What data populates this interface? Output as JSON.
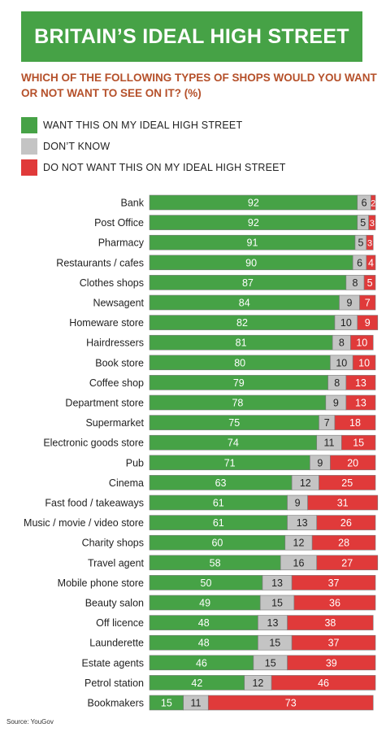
{
  "header": {
    "title": "BRITAIN’S IDEAL HIGH STREET",
    "subtitle": "WHICH OF THE FOLLOWING TYPES OF SHOPS WOULD YOU WANT OR NOT WANT TO SEE ON IT? (%)"
  },
  "colors": {
    "want": "#46a246",
    "dont_know": "#c4c4c4",
    "not_want": "#e03a3a",
    "banner": "#46a246",
    "subtitle": "#b5502a"
  },
  "legend": [
    {
      "label": "WANT THIS ON MY IDEAL HIGH STREET",
      "color": "#46a246"
    },
    {
      "label": "DON’T KNOW",
      "color": "#c4c4c4"
    },
    {
      "label": "DO NOT WANT THIS ON MY IDEAL HIGH STREET",
      "color": "#e03a3a"
    }
  ],
  "chart_data": {
    "type": "bar",
    "orientation": "horizontal",
    "stacked": true,
    "categories": [
      "Bank",
      "Post Office",
      "Pharmacy",
      "Restaurants / cafes",
      "Clothes shops",
      "Newsagent",
      "Homeware store",
      "Hairdressers",
      "Book store",
      "Coffee shop",
      "Department store",
      "Supermarket",
      "Electronic goods store",
      "Pub",
      "Cinema",
      "Fast food / takeaways",
      "Music / movie / video store",
      "Charity shops",
      "Travel agent",
      "Mobile phone store",
      "Beauty salon",
      "Off licence",
      "Launderette",
      "Estate agents",
      "Petrol station",
      "Bookmakers"
    ],
    "series": [
      {
        "name": "WANT THIS ON MY IDEAL HIGH STREET",
        "color": "#46a246",
        "label_color": "#ffffff",
        "values": [
          92,
          92,
          91,
          90,
          87,
          84,
          82,
          81,
          80,
          79,
          78,
          75,
          74,
          71,
          63,
          61,
          61,
          60,
          58,
          50,
          49,
          48,
          48,
          46,
          42,
          15
        ]
      },
      {
        "name": "DON’T KNOW",
        "color": "#c4c4c4",
        "label_color": "#222222",
        "values": [
          6,
          5,
          5,
          6,
          8,
          9,
          10,
          8,
          10,
          8,
          9,
          7,
          11,
          9,
          12,
          9,
          13,
          12,
          16,
          13,
          15,
          13,
          15,
          15,
          12,
          11
        ]
      },
      {
        "name": "DO NOT WANT THIS ON MY IDEAL HIGH STREET",
        "color": "#e03a3a",
        "label_color": "#ffffff",
        "values": [
          2,
          3,
          3,
          4,
          5,
          7,
          9,
          10,
          10,
          13,
          13,
          18,
          15,
          20,
          25,
          31,
          26,
          28,
          27,
          37,
          36,
          38,
          37,
          39,
          46,
          73
        ]
      }
    ],
    "xlim": [
      0,
      100
    ],
    "grid": false,
    "legend_position": "top-left"
  },
  "footer": {
    "source": "Source: YouGov"
  }
}
